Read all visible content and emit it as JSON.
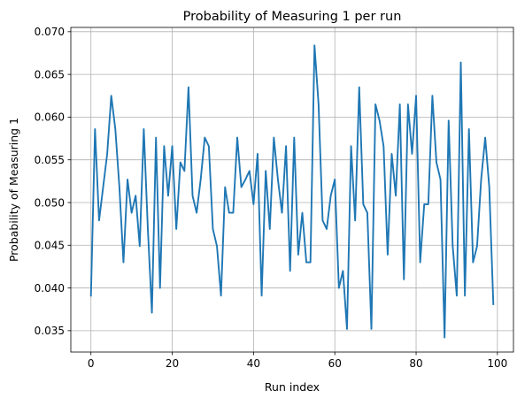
{
  "chart_data": {
    "type": "line",
    "title": "Probability of Measuring 1 per run",
    "xlabel": "Run index",
    "ylabel": "Probability of Measuring 1",
    "xlim": [
      -4.95,
      103.95
    ],
    "ylim": [
      0.0325,
      0.0705
    ],
    "xticks": [
      0,
      20,
      40,
      60,
      80,
      100
    ],
    "yticks": [
      0.035,
      0.04,
      0.045,
      0.05,
      0.055,
      0.06,
      0.065,
      0.07
    ],
    "xtick_labels": [
      "0",
      "20",
      "40",
      "60",
      "80",
      "100"
    ],
    "ytick_labels": [
      "0.035",
      "0.040",
      "0.045",
      "0.050",
      "0.055",
      "0.060",
      "0.065",
      "0.070"
    ],
    "grid": true,
    "line_color": "#1f77b4",
    "series": [
      {
        "values": [
          0.0391,
          0.0586,
          0.0479,
          0.0518,
          0.0557,
          0.0625,
          0.0586,
          0.0518,
          0.043,
          0.0527,
          0.0488,
          0.0508,
          0.0449,
          0.0586,
          0.0469,
          0.0371,
          0.0576,
          0.04,
          0.0566,
          0.0508,
          0.0566,
          0.0469,
          0.0547,
          0.0537,
          0.0635,
          0.0508,
          0.0488,
          0.0527,
          0.0576,
          0.0566,
          0.0469,
          0.0449,
          0.0391,
          0.0518,
          0.0488,
          0.0488,
          0.0576,
          0.0518,
          0.0527,
          0.0537,
          0.0498,
          0.0557,
          0.0391,
          0.0537,
          0.0469,
          0.0576,
          0.0527,
          0.0488,
          0.0566,
          0.042,
          0.0576,
          0.0439,
          0.0488,
          0.043,
          0.043,
          0.0684,
          0.0615,
          0.0479,
          0.0469,
          0.0508,
          0.0527,
          0.04,
          0.042,
          0.0352,
          0.0566,
          0.0479,
          0.0635,
          0.0498,
          0.0488,
          0.0352,
          0.0615,
          0.0596,
          0.0566,
          0.0439,
          0.0557,
          0.0508,
          0.0615,
          0.041,
          0.0615,
          0.0557,
          0.0625,
          0.043,
          0.0498,
          0.0498,
          0.0625,
          0.0547,
          0.0527,
          0.0342,
          0.0596,
          0.0449,
          0.0391,
          0.0664,
          0.0391,
          0.0586,
          0.043,
          0.0449,
          0.0527,
          0.0576,
          0.0518,
          0.0381
        ]
      }
    ]
  }
}
